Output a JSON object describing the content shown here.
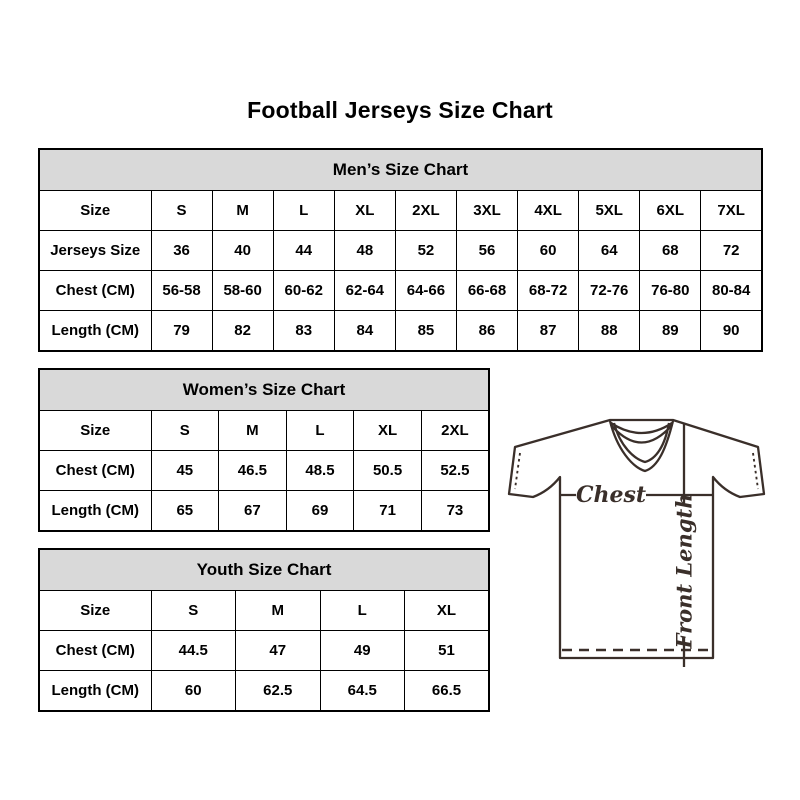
{
  "page_title": "Football Jerseys Size Chart",
  "tables": [
    {
      "name": "mens-size-chart",
      "title": "Men’s Size Chart",
      "rows": [
        [
          "Size",
          "S",
          "M",
          "L",
          "XL",
          "2XL",
          "3XL",
          "4XL",
          "5XL",
          "6XL",
          "7XL"
        ],
        [
          "Jerseys Size",
          "36",
          "40",
          "44",
          "48",
          "52",
          "56",
          "60",
          "64",
          "68",
          "72"
        ],
        [
          "Chest (CM)",
          "56-58",
          "58-60",
          "60-62",
          "62-64",
          "64-66",
          "66-68",
          "68-72",
          "72-76",
          "76-80",
          "80-84"
        ],
        [
          "Length (CM)",
          "79",
          "82",
          "83",
          "84",
          "85",
          "86",
          "87",
          "88",
          "89",
          "90"
        ]
      ]
    },
    {
      "name": "womens-size-chart",
      "title": "Women’s Size Chart",
      "rows": [
        [
          "Size",
          "S",
          "M",
          "L",
          "XL",
          "2XL"
        ],
        [
          "Chest (CM)",
          "45",
          "46.5",
          "48.5",
          "50.5",
          "52.5"
        ],
        [
          "Length (CM)",
          "65",
          "67",
          "69",
          "71",
          "73"
        ]
      ]
    },
    {
      "name": "youth-size-chart",
      "title": "Youth Size Chart",
      "rows": [
        [
          "Size",
          "S",
          "M",
          "L",
          "XL"
        ],
        [
          "Chest (CM)",
          "44.5",
          "47",
          "49",
          "51"
        ],
        [
          "Length (CM)",
          "60",
          "62.5",
          "64.5",
          "66.5"
        ]
      ]
    }
  ],
  "jersey_diagram": {
    "chest_label": "Chest",
    "front_length_label": "Front Length"
  },
  "colors": {
    "header_bg": "#d9d9d9",
    "table_border": "#000000",
    "jersey_line": "#3a2f2a",
    "text": "#000000"
  }
}
